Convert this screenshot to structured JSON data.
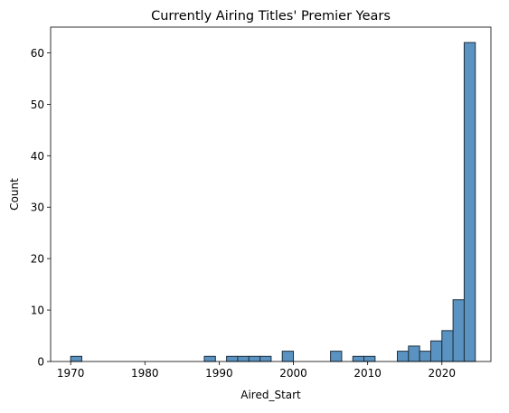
{
  "chart_data": {
    "type": "bar",
    "title": "Currently Airing Titles' Premier Years",
    "xlabel": "Aired_Start",
    "ylabel": "Count",
    "xlim": [
      1967.3,
      2026.6
    ],
    "ylim": [
      0,
      65
    ],
    "xticks": [
      1970,
      1980,
      1990,
      2000,
      2010,
      2020
    ],
    "yticks": [
      0,
      10,
      20,
      30,
      40,
      50,
      60
    ],
    "grid": false,
    "bins": [
      {
        "start": 1970.0,
        "end": 1971.5,
        "count": 1
      },
      {
        "start": 1988.0,
        "end": 1989.5,
        "count": 1
      },
      {
        "start": 1991.0,
        "end": 1992.5,
        "count": 1
      },
      {
        "start": 1992.5,
        "end": 1994.0,
        "count": 1
      },
      {
        "start": 1994.0,
        "end": 1995.5,
        "count": 1
      },
      {
        "start": 1995.5,
        "end": 1997.0,
        "count": 1
      },
      {
        "start": 1998.5,
        "end": 2000.0,
        "count": 2
      },
      {
        "start": 2005.0,
        "end": 2006.5,
        "count": 2
      },
      {
        "start": 2008.0,
        "end": 2009.5,
        "count": 1
      },
      {
        "start": 2009.5,
        "end": 2011.0,
        "count": 1
      },
      {
        "start": 2014.0,
        "end": 2015.5,
        "count": 2
      },
      {
        "start": 2015.5,
        "end": 2017.0,
        "count": 3
      },
      {
        "start": 2017.0,
        "end": 2018.5,
        "count": 2
      },
      {
        "start": 2018.5,
        "end": 2020.0,
        "count": 4
      },
      {
        "start": 2020.0,
        "end": 2021.5,
        "count": 6
      },
      {
        "start": 2021.5,
        "end": 2023.0,
        "count": 12
      },
      {
        "start": 2023.0,
        "end": 2024.5,
        "count": 62
      }
    ]
  }
}
